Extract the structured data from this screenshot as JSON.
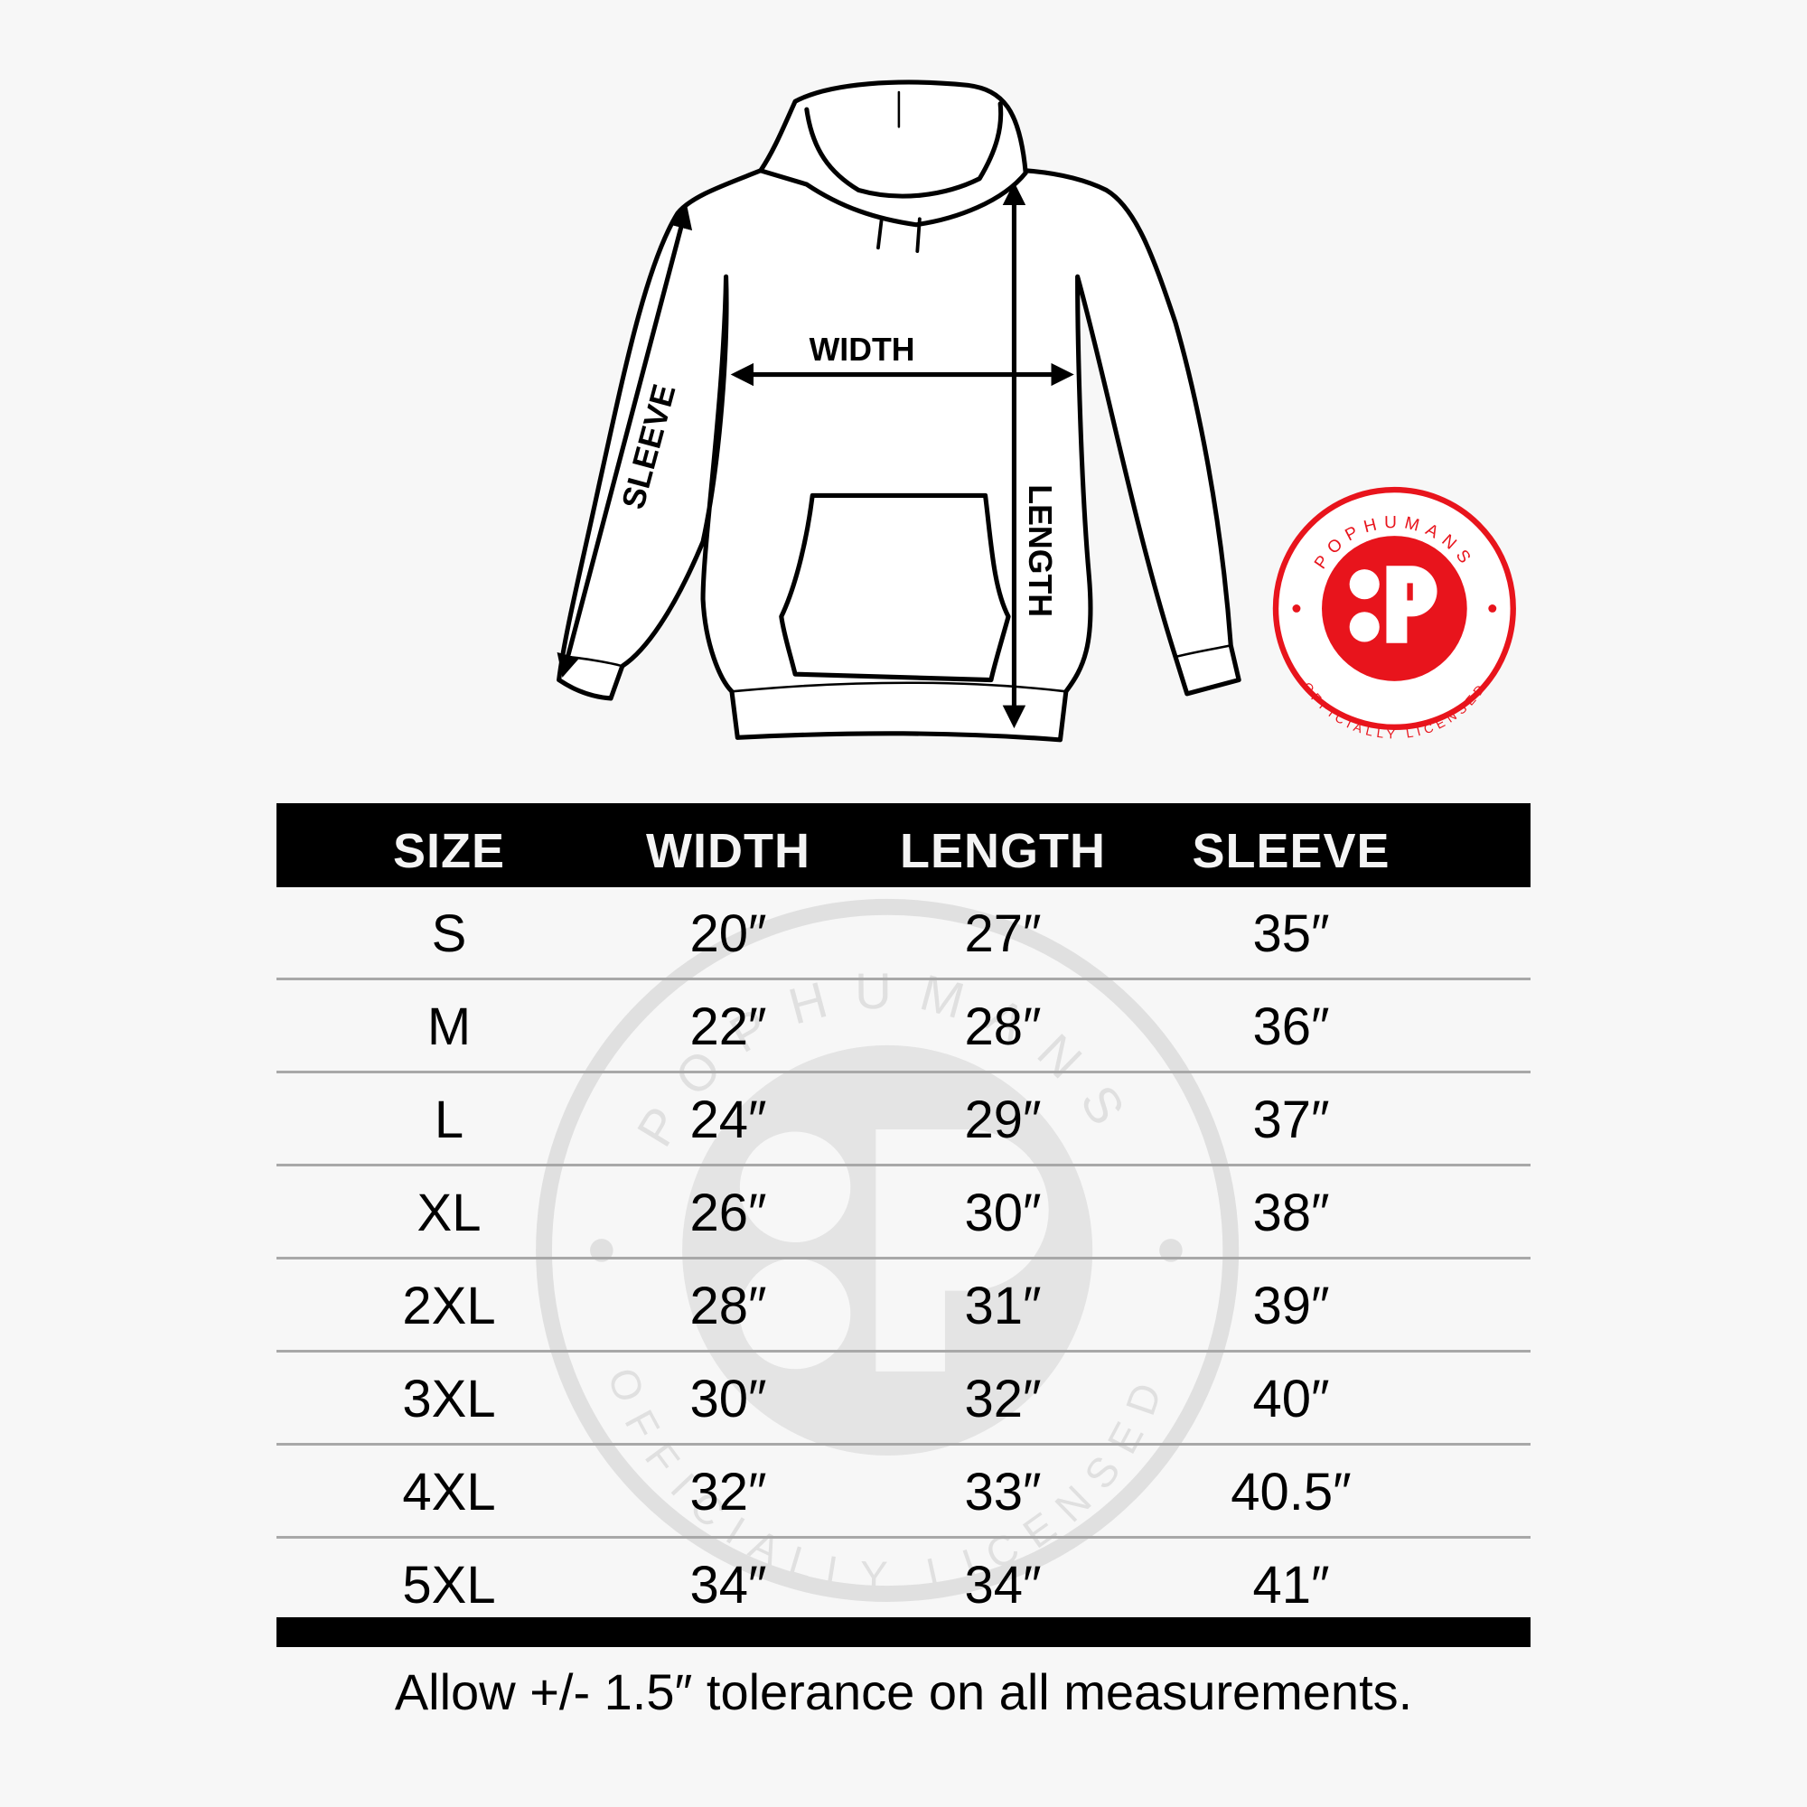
{
  "diagram": {
    "labels": {
      "width": "WIDTH",
      "length": "LENGTH",
      "sleeve": "SLEEVE"
    }
  },
  "logo": {
    "brand": "POPHUMANS",
    "tagline": "OFFICIALLY LICENSED",
    "color": "#e8141c"
  },
  "watermark": {
    "brand": "POPHUMANS",
    "tagline": "OFFICIALLY LICENSED",
    "color": "#dcdcdc"
  },
  "table": {
    "headers": [
      "SIZE",
      "WIDTH",
      "LENGTH",
      "SLEEVE"
    ],
    "rows": [
      [
        "S",
        "20″",
        "27″",
        "35″"
      ],
      [
        "M",
        "22″",
        "28″",
        "36″"
      ],
      [
        "L",
        "24″",
        "29″",
        "37″"
      ],
      [
        "XL",
        "26″",
        "30″",
        "38″"
      ],
      [
        "2XL",
        "28″",
        "31″",
        "39″"
      ],
      [
        "3XL",
        "30″",
        "32″",
        "40″"
      ],
      [
        "4XL",
        "32″",
        "33″",
        "40.5″"
      ],
      [
        "5XL",
        "34″",
        "34″",
        "41″"
      ]
    ]
  },
  "footer": "Allow +/- 1.5″ tolerance on all measurements."
}
